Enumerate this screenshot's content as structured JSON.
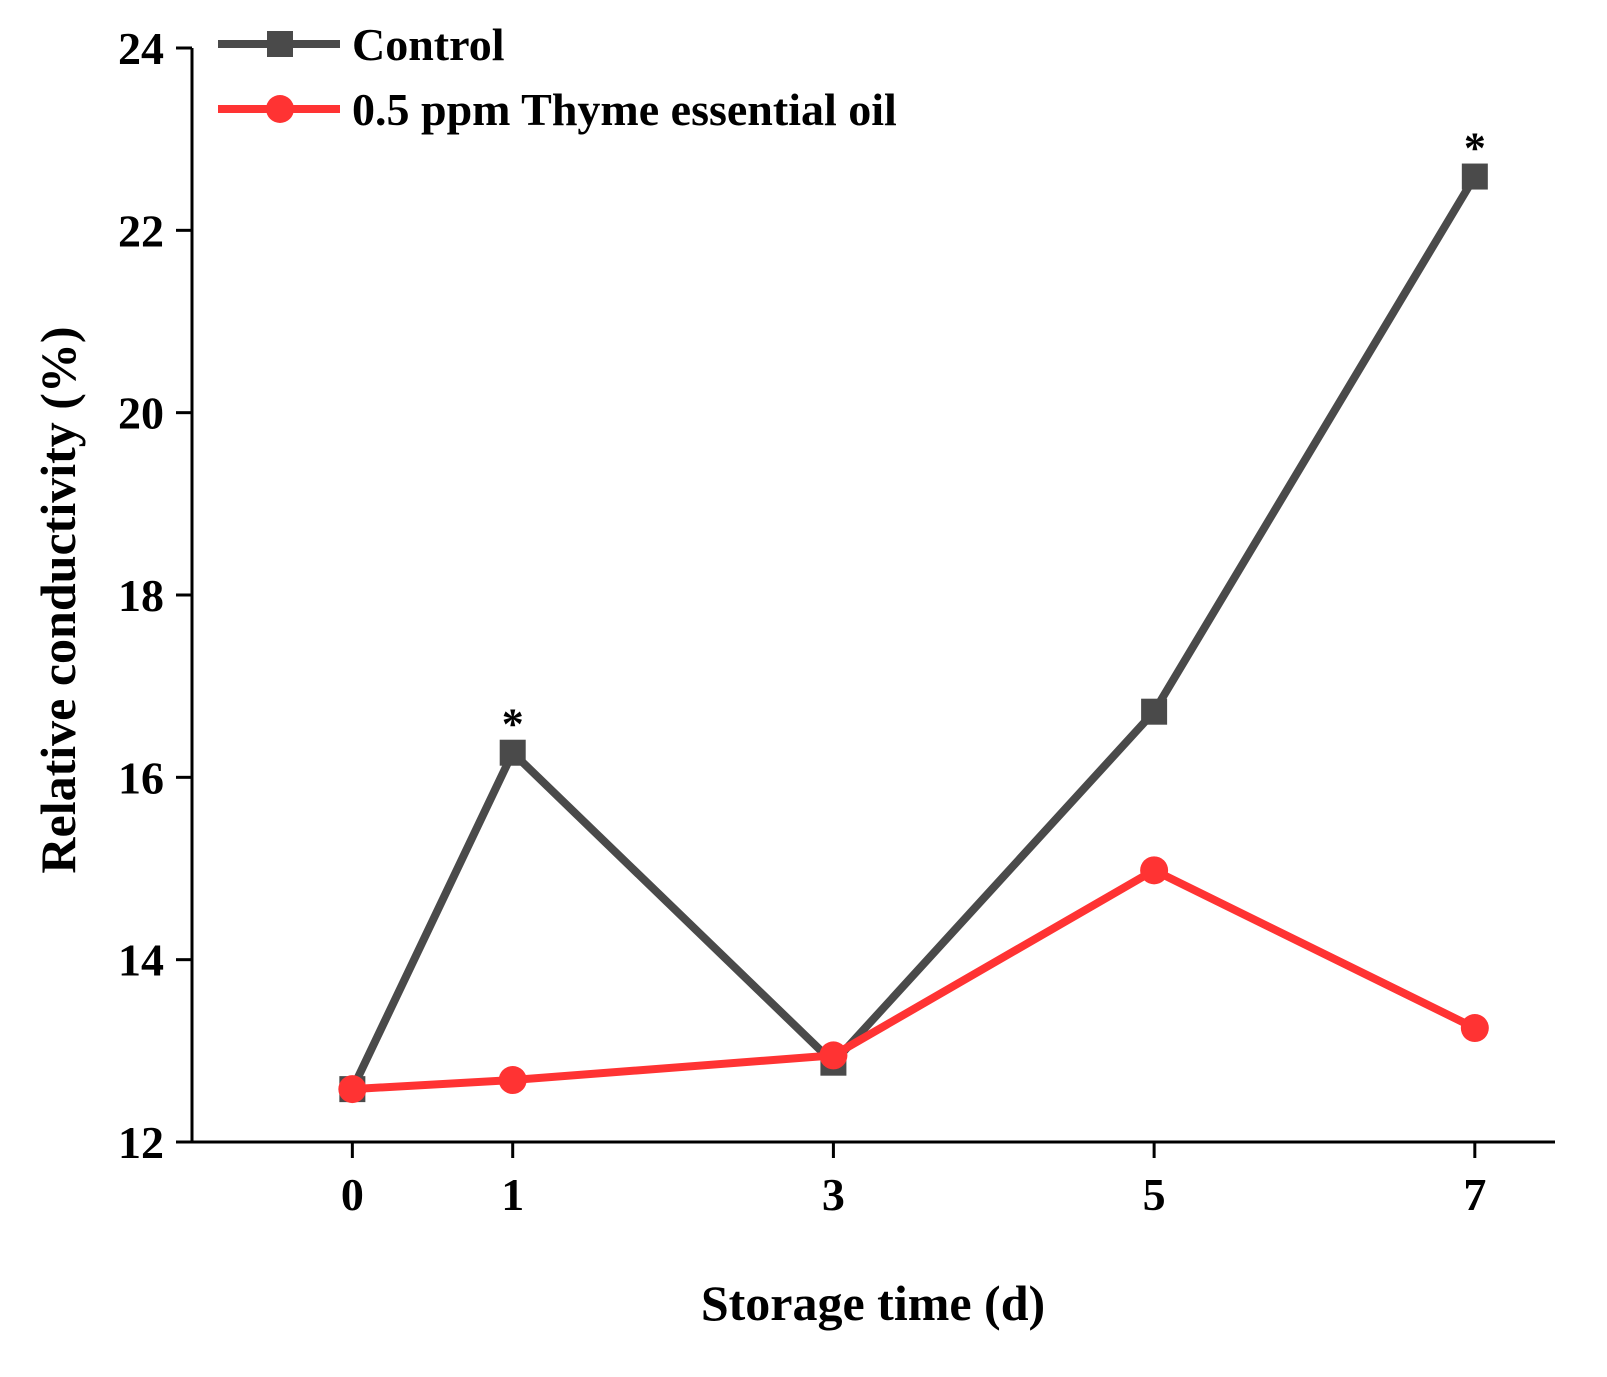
{
  "chart_data": {
    "type": "line",
    "title": "",
    "xlabel": "Storage time (d)",
    "ylabel": "Relative conductivity (%)",
    "x": [
      0,
      1,
      3,
      5,
      7
    ],
    "x_tick_labels": [
      "0",
      "1",
      "3",
      "5",
      "7"
    ],
    "xlim": [
      -1,
      7.5
    ],
    "ylim": [
      12,
      24
    ],
    "y_ticks": [
      12,
      14,
      16,
      18,
      20,
      22,
      24
    ],
    "y_tick_labels": [
      "12",
      "14",
      "16",
      "18",
      "20",
      "22",
      "24"
    ],
    "grid": false,
    "legend_position": "top-left",
    "series": [
      {
        "name": "Control",
        "color": "#4a4a4a",
        "marker": "square",
        "values": [
          12.58,
          16.27,
          12.87,
          16.72,
          22.59
        ]
      },
      {
        "name": "0.5 ppm Thyme essential oil",
        "color": "#ff3333",
        "marker": "circle",
        "values": [
          12.58,
          12.68,
          12.95,
          14.98,
          13.25
        ]
      }
    ],
    "annotations": [
      {
        "text": "*",
        "x": 1,
        "series": "Control"
      },
      {
        "text": "*",
        "x": 7,
        "series": "Control"
      }
    ]
  }
}
